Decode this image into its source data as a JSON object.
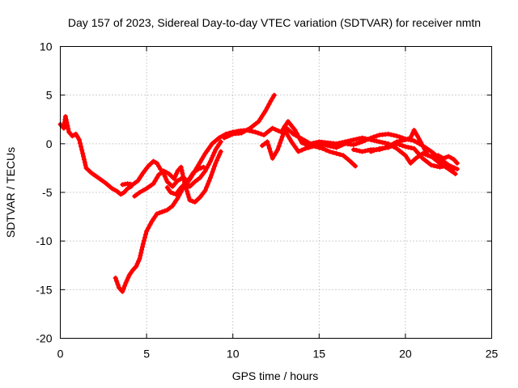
{
  "chart_data": {
    "type": "scatter",
    "title": "Day 157 of 2023, Sidereal Day-to-day VTEC variation (SDTVAR) for receiver nmtn",
    "xlabel": "GPS time / hours",
    "ylabel": "SDTVAR / TECUs",
    "xlim": [
      0,
      25
    ],
    "ylim": [
      -20,
      10
    ],
    "xticks": [
      0,
      5,
      10,
      15,
      20,
      25
    ],
    "yticks": [
      -20,
      -15,
      -10,
      -5,
      0,
      5,
      10
    ],
    "grid": true,
    "series": [
      {
        "name": "arc-1",
        "color": "#ff0000",
        "x": [
          0.0,
          0.2,
          0.3,
          0.5,
          0.7,
          0.9,
          1.1,
          1.3,
          1.5,
          1.8,
          2.2,
          2.6,
          3.0,
          3.3,
          3.5,
          3.7,
          3.9,
          4.1
        ],
        "y": [
          2.0,
          1.6,
          2.8,
          1.2,
          0.8,
          1.0,
          0.4,
          -1.0,
          -2.5,
          -3.0,
          -3.5,
          -4.0,
          -4.6,
          -4.9,
          -5.2,
          -5.0,
          -4.6,
          -4.4
        ]
      },
      {
        "name": "arc-2",
        "color": "#ff0000",
        "x": [
          3.2,
          3.4,
          3.6,
          3.8,
          4.0,
          4.2,
          4.4,
          4.6,
          4.8,
          5.0,
          5.3,
          5.6,
          5.9,
          6.2,
          6.5,
          6.8,
          7.1,
          7.3,
          7.6,
          8.0,
          8.4,
          8.8,
          9.2,
          9.6,
          10.0,
          10.4
        ],
        "y": [
          -13.8,
          -14.8,
          -15.2,
          -14.3,
          -13.5,
          -13.0,
          -12.6,
          -11.8,
          -10.3,
          -9.0,
          -8.0,
          -7.2,
          -7.0,
          -6.8,
          -6.4,
          -5.6,
          -4.6,
          -4.2,
          -3.4,
          -2.2,
          -1.0,
          0.0,
          0.6,
          1.0,
          1.2,
          1.3
        ]
      },
      {
        "name": "arc-3",
        "color": "#ff0000",
        "x": [
          3.6,
          3.9,
          4.2,
          4.5,
          4.8,
          5.1,
          5.4,
          5.6,
          5.8,
          6.0,
          6.2,
          6.5,
          6.8,
          7.1,
          7.4,
          7.7,
          8.0,
          8.3
        ],
        "y": [
          -4.2,
          -4.1,
          -4.2,
          -3.8,
          -3.0,
          -2.3,
          -1.8,
          -2.0,
          -2.6,
          -3.1,
          -3.9,
          -4.4,
          -3.8,
          -3.5,
          -3.8,
          -3.0,
          -2.6,
          -2.4
        ]
      },
      {
        "name": "arc-4",
        "color": "#ff0000",
        "x": [
          4.3,
          4.6,
          5.0,
          5.4,
          5.7,
          6.0,
          6.3,
          6.6,
          6.8,
          7.0,
          7.2,
          7.5,
          7.8,
          8.1,
          8.4,
          8.7,
          9.0,
          9.3
        ],
        "y": [
          -5.4,
          -5.0,
          -4.6,
          -4.1,
          -3.2,
          -2.8,
          -3.1,
          -3.6,
          -2.8,
          -2.4,
          -4.0,
          -5.8,
          -6.0,
          -5.5,
          -4.8,
          -3.5,
          -2.0,
          -0.8
        ]
      },
      {
        "name": "arc-5",
        "color": "#ff0000",
        "x": [
          6.2,
          6.4,
          6.7,
          7.0,
          7.3,
          7.5,
          7.8,
          8.1,
          8.4,
          8.7,
          9.0,
          9.3
        ],
        "y": [
          -4.5,
          -5.0,
          -5.2,
          -4.5,
          -4.0,
          -4.4,
          -3.9,
          -3.5,
          -2.8,
          -1.8,
          -0.6,
          0.2
        ]
      },
      {
        "name": "arc-6",
        "color": "#ff0000",
        "x": [
          9.5,
          10.0,
          10.5,
          11.0,
          11.5,
          11.9,
          12.2,
          12.4
        ],
        "y": [
          0.6,
          1.0,
          1.1,
          1.6,
          2.3,
          3.4,
          4.4,
          5.0
        ]
      },
      {
        "name": "arc-7",
        "color": "#ff0000",
        "x": [
          10.3,
          10.8,
          11.3,
          11.8,
          12.3,
          12.8,
          13.2,
          13.6,
          14.0,
          14.4,
          14.8,
          15.2,
          15.6,
          16.0,
          16.4,
          16.8,
          17.1
        ],
        "y": [
          1.3,
          1.4,
          1.2,
          0.9,
          1.6,
          1.2,
          2.3,
          1.4,
          0.1,
          -0.2,
          -0.3,
          -0.5,
          -0.8,
          -1.0,
          -1.2,
          -1.8,
          -2.3
        ]
      },
      {
        "name": "arc-8",
        "color": "#ff0000",
        "x": [
          11.7,
          12.0,
          12.3,
          12.6,
          13.0,
          13.4,
          13.8,
          14.2,
          14.6,
          15.0,
          15.5,
          16.0,
          16.5,
          17.0,
          17.5,
          18.0,
          18.5,
          19.0,
          19.5,
          20.0,
          20.5,
          21.0,
          21.5,
          22.0,
          22.5,
          22.8
        ],
        "y": [
          -0.2,
          0.2,
          -1.5,
          -0.6,
          1.4,
          0.2,
          -0.8,
          -0.5,
          -0.3,
          0.0,
          -0.2,
          -0.4,
          0.0,
          -0.1,
          0.2,
          0.6,
          0.9,
          1.0,
          0.8,
          0.5,
          0.3,
          -0.2,
          -0.8,
          -1.5,
          -2.2,
          -2.6
        ]
      },
      {
        "name": "arc-9",
        "color": "#ff0000",
        "x": [
          13.0,
          13.5,
          14.0,
          14.5,
          15.0,
          15.5,
          16.0,
          16.5,
          17.0,
          17.5,
          18.0,
          18.5,
          19.0,
          19.5,
          20.0,
          20.3,
          20.6,
          21.0,
          21.5,
          22.0,
          22.5,
          22.9
        ],
        "y": [
          1.8,
          1.0,
          0.5,
          0.0,
          0.2,
          0.1,
          0.0,
          0.2,
          0.4,
          0.6,
          0.4,
          0.2,
          0.0,
          -0.5,
          -1.2,
          -2.0,
          -1.5,
          -1.0,
          -1.3,
          -2.0,
          -2.6,
          -3.1
        ]
      },
      {
        "name": "arc-10",
        "color": "#ff0000",
        "x": [
          17.0,
          17.5,
          18.0,
          18.5,
          19.0,
          19.5,
          20.0,
          20.3,
          20.5,
          20.7,
          21.0,
          21.3,
          21.6,
          21.9,
          22.2,
          22.5,
          22.8,
          23.0
        ],
        "y": [
          -0.6,
          -0.8,
          -0.6,
          -0.6,
          -0.3,
          0.2,
          0.4,
          0.6,
          1.4,
          0.8,
          -0.2,
          -1.2,
          -1.4,
          -1.2,
          -1.5,
          -1.3,
          -1.6,
          -2.0
        ]
      },
      {
        "name": "arc-11",
        "color": "#ff0000",
        "x": [
          18.0,
          18.5,
          19.0,
          19.5,
          20.0,
          20.5,
          21.0,
          21.5,
          22.0,
          22.5,
          23.0
        ],
        "y": [
          -0.8,
          -0.5,
          -0.4,
          0.0,
          -0.3,
          -0.5,
          -1.5,
          -2.2,
          -2.4,
          -2.2,
          -2.6
        ]
      }
    ]
  }
}
